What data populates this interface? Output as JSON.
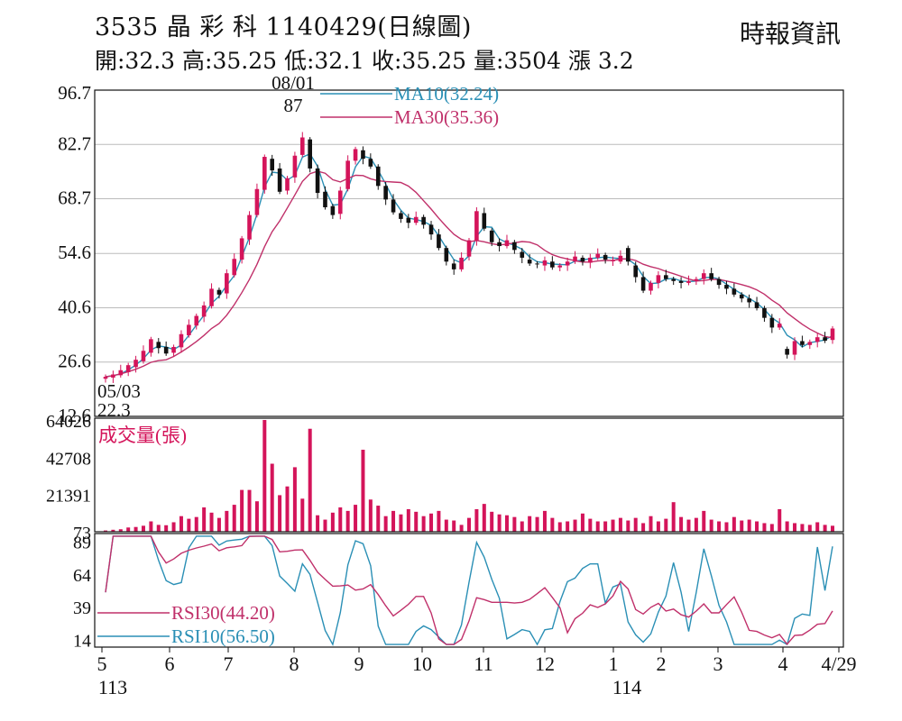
{
  "header": {
    "title": "3535  晶 彩 科 1140429(日線圖)",
    "stats": "開:32.3 高:35.25 低:32.1 收:35.25 量:3504 漲 3.2",
    "brand": "時報資訊"
  },
  "chart_data": {
    "type": "candlestick",
    "price_panel": {
      "y_ticks": [
        "96.7",
        "82.7",
        "68.7",
        "54.6",
        "40.6",
        "26.6",
        "12.6"
      ],
      "ylim": [
        12.6,
        96.7
      ],
      "grid": true,
      "legend": [
        {
          "label": "MA10(32.24)",
          "color": "#2a8fb5"
        },
        {
          "label": "MA30(35.36)",
          "color": "#c0306a"
        }
      ],
      "annotations": [
        {
          "date": "08/01",
          "value": "87"
        },
        {
          "date": "05/03",
          "value": "22.3"
        }
      ],
      "candles_approx": [
        [
          22.3,
          22.8
        ],
        [
          22.6,
          23.4
        ],
        [
          23.2,
          24.5
        ],
        [
          24.0,
          25.8
        ],
        [
          25.3,
          27.2
        ],
        [
          26.8,
          29.5
        ],
        [
          29.0,
          32.5
        ],
        [
          31.8,
          30.2
        ],
        [
          30.5,
          28.8
        ],
        [
          29.0,
          30.5
        ],
        [
          30.4,
          33.8
        ],
        [
          33.5,
          36.2
        ],
        [
          36.0,
          38.5
        ],
        [
          38.3,
          41.2
        ],
        [
          41.0,
          45.5
        ],
        [
          45.2,
          44.0
        ],
        [
          44.3,
          49.5
        ],
        [
          49.0,
          53.2
        ],
        [
          53.0,
          58.5
        ],
        [
          58.2,
          64.5
        ],
        [
          64.5,
          71.2
        ],
        [
          71.0,
          79.5
        ],
        [
          79.0,
          76.0
        ],
        [
          76.5,
          70.5
        ],
        [
          70.8,
          74.0
        ],
        [
          74.2,
          79.8
        ],
        [
          80.0,
          84.5
        ],
        [
          84.0,
          76.5
        ],
        [
          76.5,
          70.2
        ],
        [
          70.5,
          66.5
        ],
        [
          66.8,
          64.5
        ],
        [
          64.8,
          70.8
        ],
        [
          71.2,
          78.5
        ],
        [
          78.5,
          81.5
        ],
        [
          81.2,
          79.0
        ],
        [
          79.0,
          77.0
        ],
        [
          77.0,
          72.0
        ],
        [
          72.0,
          68.5
        ],
        [
          68.5,
          65.2
        ],
        [
          65.0,
          63.5
        ],
        [
          63.8,
          62.5
        ],
        [
          62.5,
          64.0
        ],
        [
          64.0,
          62.0
        ],
        [
          62.0,
          59.5
        ],
        [
          59.5,
          56.0
        ],
        [
          56.0,
          52.5
        ],
        [
          52.0,
          50.5
        ],
        [
          50.5,
          53.5
        ],
        [
          53.8,
          58.0
        ],
        [
          58.0,
          65.5
        ],
        [
          65.0,
          61.0
        ],
        [
          60.5,
          57.5
        ],
        [
          57.5,
          56.5
        ],
        [
          56.5,
          58.0
        ],
        [
          57.5,
          55.5
        ],
        [
          55.0,
          53.5
        ],
        [
          53.0,
          52.0
        ],
        [
          52.0,
          51.8
        ],
        [
          51.5,
          52.8
        ],
        [
          52.5,
          51.0
        ],
        [
          51.0,
          51.5
        ],
        [
          51.5,
          52.5
        ],
        [
          52.5,
          53.8
        ],
        [
          53.5,
          52.5
        ],
        [
          52.2,
          53.5
        ],
        [
          53.5,
          54.5
        ],
        [
          54.2,
          53.0
        ],
        [
          52.8,
          52.8
        ],
        [
          52.5,
          54.0
        ],
        [
          56.0,
          52.5
        ],
        [
          51.5,
          48.5
        ],
        [
          48.5,
          45.0
        ],
        [
          45.0,
          47.0
        ],
        [
          47.0,
          49.0
        ],
        [
          49.0,
          48.0
        ],
        [
          48.0,
          47.5
        ],
        [
          47.5,
          47.0
        ],
        [
          47.0,
          47.5
        ],
        [
          47.5,
          48.0
        ],
        [
          48.0,
          49.5
        ],
        [
          49.5,
          48.0
        ],
        [
          48.0,
          46.5
        ],
        [
          46.5,
          45.5
        ],
        [
          45.5,
          44.0
        ],
        [
          44.0,
          43.0
        ],
        [
          43.0,
          42.0
        ],
        [
          42.0,
          40.5
        ],
        [
          40.5,
          38.0
        ],
        [
          38.0,
          35.5
        ],
        [
          35.5,
          36.5
        ],
        [
          30.0,
          28.5
        ],
        [
          28.5,
          32.0
        ],
        [
          32.0,
          31.0
        ],
        [
          31.0,
          31.8
        ],
        [
          31.8,
          33.0
        ],
        [
          33.0,
          32.1
        ],
        [
          32.3,
          35.25
        ]
      ]
    },
    "volume_panel": {
      "label": "成交量(張)",
      "y_ticks": [
        "64026",
        "42708",
        "21391",
        "73"
      ],
      "ylim": [
        73,
        64026
      ],
      "bars_approx": [
        800,
        1200,
        1500,
        2500,
        2800,
        3500,
        6000,
        4000,
        3800,
        5500,
        9000,
        7500,
        8500,
        14000,
        11000,
        8000,
        12000,
        15500,
        24000,
        24000,
        17500,
        64026,
        39000,
        21000,
        26000,
        37000,
        19000,
        59000,
        9500,
        7000,
        11000,
        14000,
        12000,
        15500,
        47000,
        18500,
        15000,
        9000,
        12000,
        10000,
        13000,
        11500,
        9000,
        10500,
        12000,
        7000,
        6500,
        4000,
        8000,
        13000,
        16000,
        11500,
        10000,
        9500,
        8500,
        6000,
        9000,
        8500,
        12000,
        8000,
        5500,
        6000,
        7000,
        10500,
        7500,
        6000,
        6000,
        7000,
        8000,
        6500,
        8000,
        5000,
        9000,
        6000,
        7500,
        17000,
        8500,
        7000,
        8000,
        12000,
        7000,
        6000,
        5500,
        8500,
        6500,
        7000,
        6000,
        5000,
        4500,
        13000,
        6000,
        5000,
        4500,
        4000,
        5500,
        4000,
        3504
      ]
    },
    "rsi_panel": {
      "y_ticks": [
        "89",
        "64",
        "39",
        "14"
      ],
      "ylim": [
        14,
        89
      ],
      "legend": [
        {
          "label": "RSI30(44.20)",
          "color": "#c0306a"
        },
        {
          "label": "RSI10(56.50)",
          "color": "#2a8fb5"
        }
      ]
    },
    "x_labels": [
      "5",
      "6",
      "7",
      "8",
      "9",
      "10",
      "11",
      "12",
      "1",
      "2",
      "3",
      "4",
      "4/29"
    ],
    "x_year_labels": [
      {
        "month": "5",
        "year": "113"
      },
      {
        "month": "1",
        "year": "114"
      }
    ],
    "colors": {
      "up": "#d4145a",
      "down": "#111111",
      "ma10": "#2a8fb5",
      "ma30": "#c0306a",
      "volume": "#d4145a",
      "grid": "#bbbbbb"
    }
  }
}
